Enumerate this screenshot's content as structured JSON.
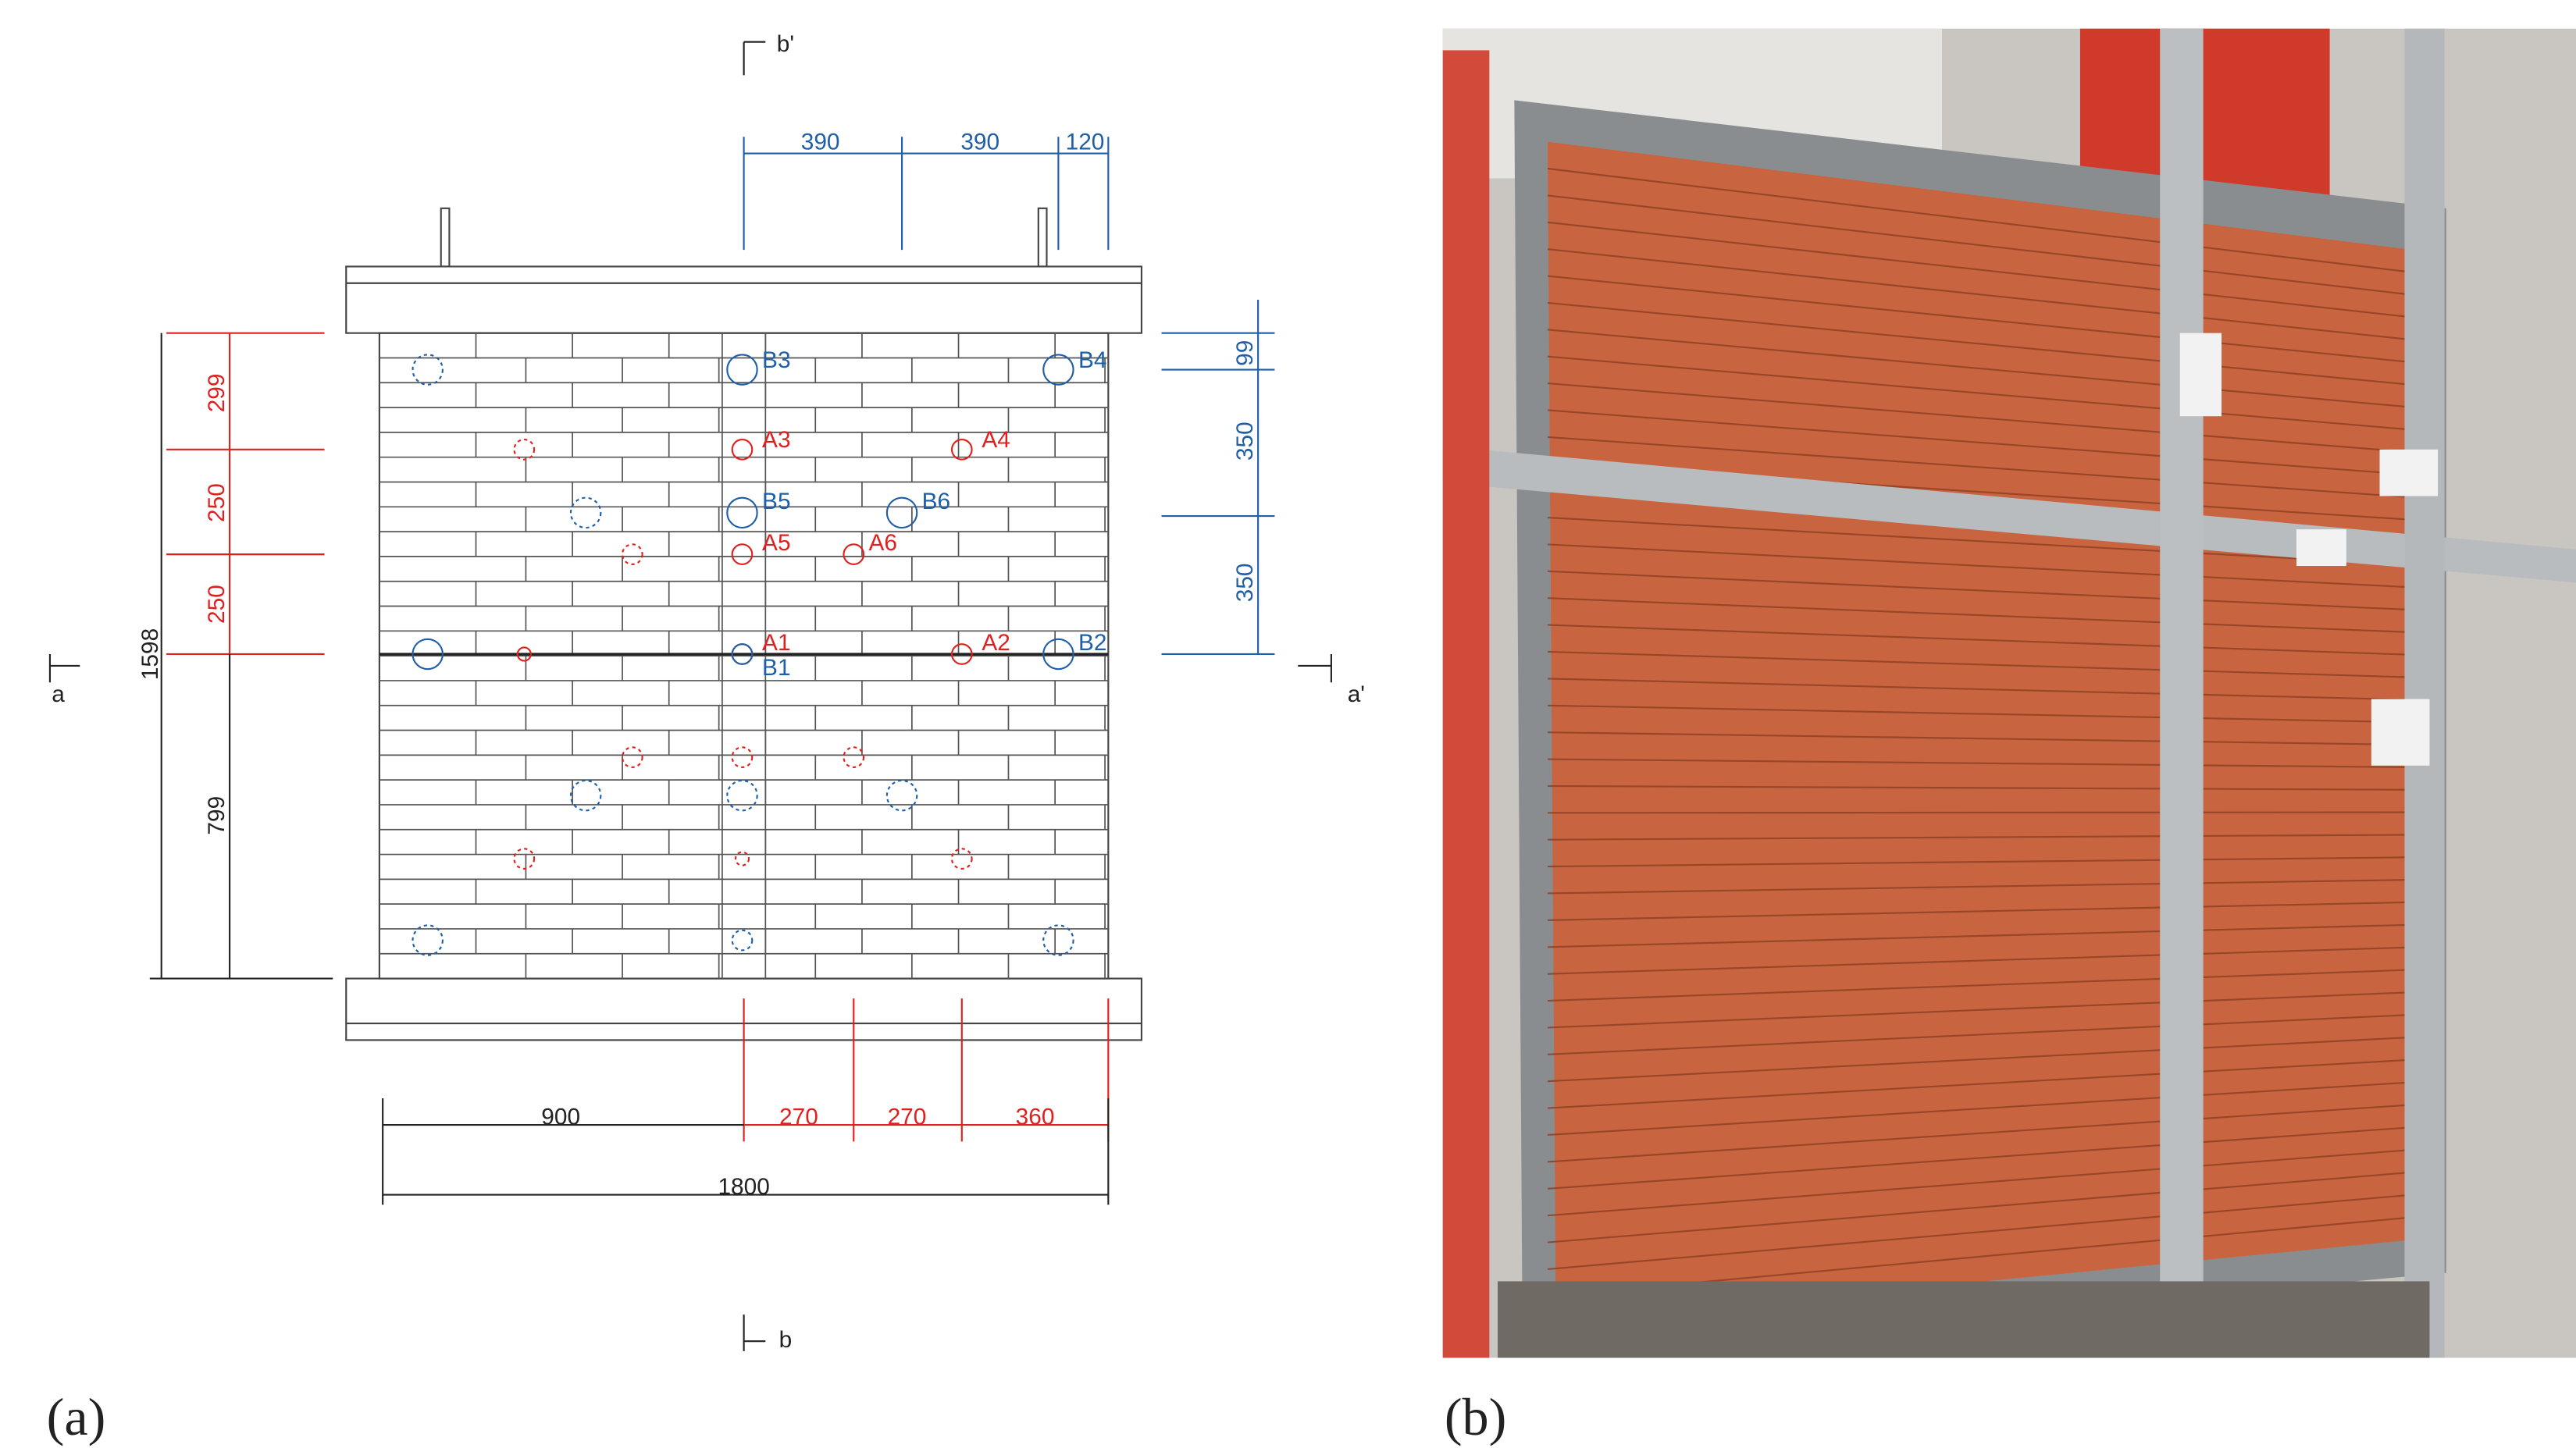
{
  "panel_labels": [
    "(a)",
    "(b)"
  ],
  "drawing": {
    "sections": [
      "a",
      "a'",
      "b",
      "b'"
    ],
    "dimensions_top": [
      "390",
      "390",
      "120"
    ],
    "dimensions_right": [
      "99",
      "350",
      "350"
    ],
    "dimensions_left_red": [
      "299",
      "250",
      "250"
    ],
    "dimensions_left_black": [
      "1598",
      "799"
    ],
    "dimensions_bottom_red": [
      "270",
      "270",
      "360"
    ],
    "dimensions_bottom_black": [
      "900",
      "1800"
    ],
    "sensors_a": [
      "A1",
      "A2",
      "A3",
      "A4",
      "A5",
      "A6"
    ],
    "sensors_b": [
      "B1",
      "B2",
      "B3",
      "B4",
      "B5",
      "B6"
    ]
  }
}
